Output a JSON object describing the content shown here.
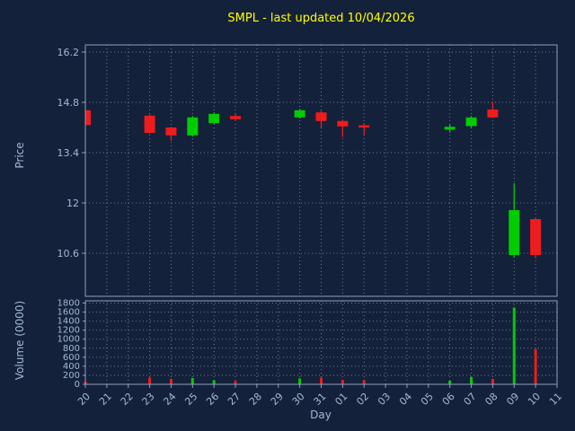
{
  "chart_data": {
    "type": "candlestick",
    "title": "SMPL - last updated 10/04/2026",
    "xlabel": "Day",
    "price_axis": {
      "label": "Price",
      "ticks": [
        10.6,
        12,
        13.4,
        14.8,
        16.2
      ],
      "range": [
        9.4,
        16.4
      ]
    },
    "volume_axis": {
      "label": "Volume (0000)",
      "ticks": [
        0,
        200,
        400,
        600,
        800,
        1000,
        1200,
        1400,
        1600,
        1800
      ],
      "range": [
        0,
        1850
      ]
    },
    "x_labels": [
      "20",
      "21",
      "22",
      "23",
      "24",
      "25",
      "26",
      "27",
      "28",
      "29",
      "30",
      "31",
      "01",
      "02",
      "03",
      "04",
      "05",
      "06",
      "07",
      "08",
      "09",
      "10",
      "11"
    ],
    "series": [
      {
        "day": "20",
        "open": 14.58,
        "high": 14.6,
        "low": 14.15,
        "close": 14.17,
        "volume": 60
      },
      {
        "day": "23",
        "open": 14.43,
        "high": 14.46,
        "low": 13.93,
        "close": 13.95,
        "volume": 150
      },
      {
        "day": "24",
        "open": 14.1,
        "high": 14.12,
        "low": 13.73,
        "close": 13.88,
        "volume": 120
      },
      {
        "day": "25",
        "open": 13.88,
        "high": 14.42,
        "low": 13.85,
        "close": 14.38,
        "volume": 140
      },
      {
        "day": "26",
        "open": 14.22,
        "high": 14.52,
        "low": 14.2,
        "close": 14.48,
        "volume": 90
      },
      {
        "day": "27",
        "open": 14.42,
        "high": 14.5,
        "low": 14.28,
        "close": 14.33,
        "volume": 70
      },
      {
        "day": "30",
        "open": 14.38,
        "high": 14.62,
        "low": 14.35,
        "close": 14.58,
        "volume": 130
      },
      {
        "day": "31",
        "open": 14.52,
        "high": 14.56,
        "low": 14.08,
        "close": 14.28,
        "volume": 150
      },
      {
        "day": "01",
        "open": 14.28,
        "high": 14.32,
        "low": 13.84,
        "close": 14.13,
        "volume": 100
      },
      {
        "day": "02",
        "open": 14.16,
        "high": 14.22,
        "low": 13.9,
        "close": 14.1,
        "volume": 90
      },
      {
        "day": "06",
        "open": 14.04,
        "high": 14.18,
        "low": 13.96,
        "close": 14.12,
        "volume": 80
      },
      {
        "day": "07",
        "open": 14.14,
        "high": 14.42,
        "low": 14.1,
        "close": 14.38,
        "volume": 160
      },
      {
        "day": "08",
        "open": 14.6,
        "high": 14.82,
        "low": 14.36,
        "close": 14.38,
        "volume": 120
      },
      {
        "day": "09",
        "open": 10.55,
        "high": 12.55,
        "low": 10.48,
        "close": 11.8,
        "volume": 1700
      },
      {
        "day": "10",
        "open": 11.55,
        "high": 11.58,
        "low": 10.46,
        "close": 10.55,
        "volume": 780
      }
    ],
    "legend": "none",
    "grid": "dotted",
    "colors": {
      "up": "#00cc00",
      "down": "#ee1c1c",
      "background": "#14213a",
      "grid": "#6f7a90",
      "axis": "#8c9fbf",
      "tick_text": "#a3b9d6",
      "title": "#ffff00"
    }
  }
}
